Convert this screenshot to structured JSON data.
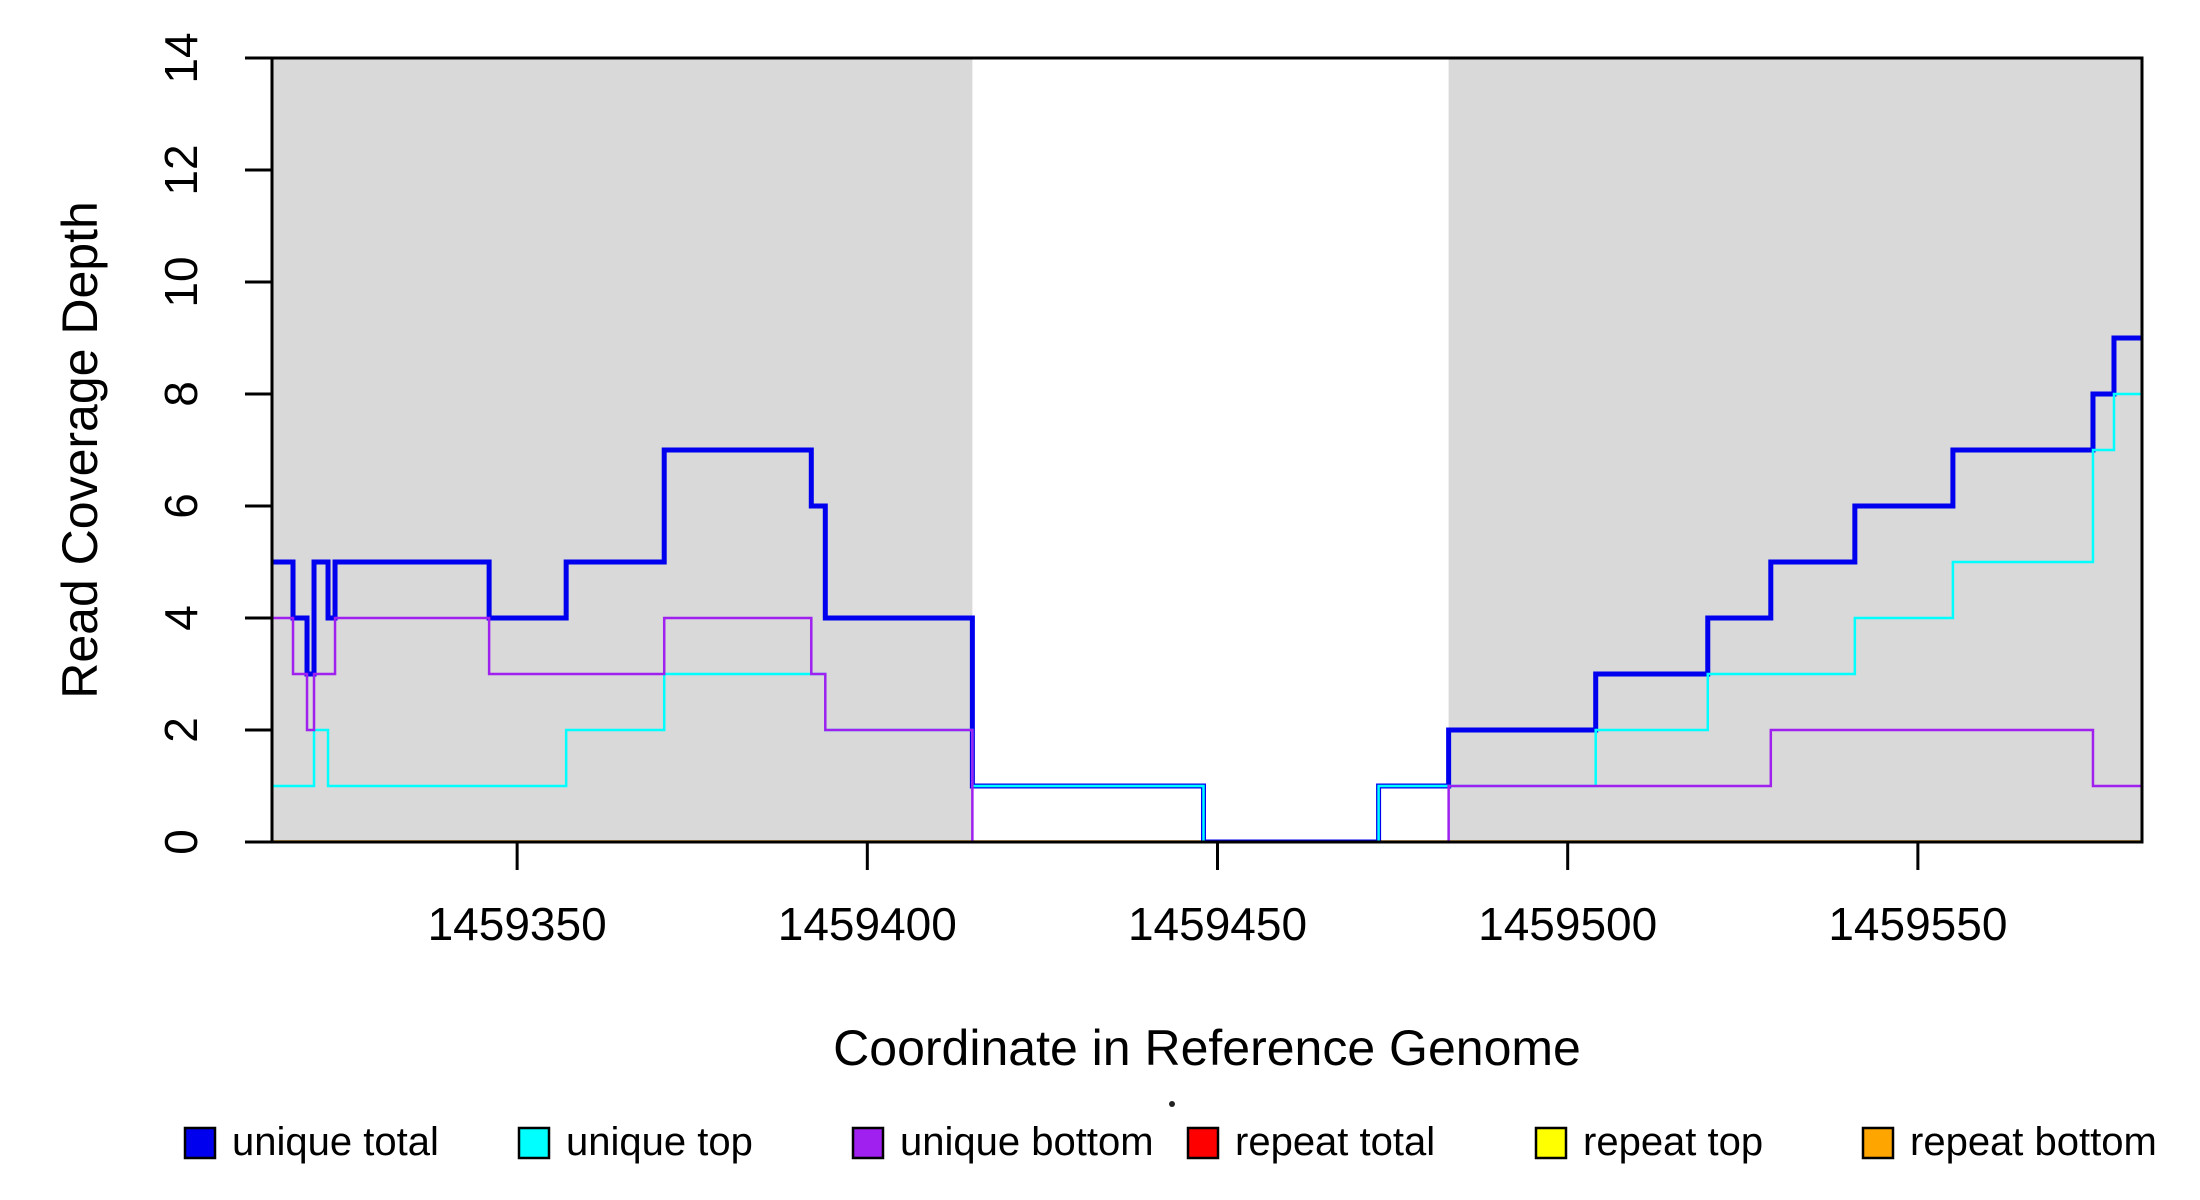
{
  "chart_data": {
    "type": "line",
    "subtype": "step-coverage-plot",
    "title": "",
    "xlabel": "Coordinate in Reference Genome",
    "ylabel": "Read Coverage Depth",
    "xlim": [
      1459315,
      1459582
    ],
    "ylim": [
      0,
      14
    ],
    "x_ticks": [
      1459350,
      1459400,
      1459450,
      1459500,
      1459550
    ],
    "y_ticks": [
      0,
      2,
      4,
      6,
      8,
      10,
      12,
      14
    ],
    "grid": false,
    "legend_position": "bottom",
    "background_color": "#ffffff",
    "shaded_region_color": "#d9d9d9",
    "shaded_regions": [
      {
        "from": 1459315,
        "to": 1459415
      },
      {
        "from": 1459483,
        "to": 1459582
      }
    ],
    "series": [
      {
        "name": "repeat total",
        "color": "#ff0000",
        "width": 2.5,
        "steps": [
          [
            1459315,
            0
          ]
        ]
      },
      {
        "name": "repeat top",
        "color": "#ffff00",
        "width": 2.5,
        "steps": [
          [
            1459315,
            0
          ]
        ]
      },
      {
        "name": "repeat bottom",
        "color": "#ffa500",
        "width": 3.5,
        "steps": [
          [
            1459315,
            0
          ]
        ]
      },
      {
        "name": "unique total",
        "color": "#0000ee",
        "width": 5,
        "steps": [
          [
            1459315,
            5
          ],
          [
            1459318,
            4
          ],
          [
            1459320,
            3
          ],
          [
            1459321,
            5
          ],
          [
            1459323,
            4
          ],
          [
            1459324,
            5
          ],
          [
            1459346,
            4
          ],
          [
            1459357,
            5
          ],
          [
            1459371,
            7
          ],
          [
            1459392,
            6
          ],
          [
            1459394,
            4
          ],
          [
            1459415,
            1
          ],
          [
            1459448,
            0
          ],
          [
            1459473,
            1
          ],
          [
            1459483,
            2
          ],
          [
            1459504,
            3
          ],
          [
            1459520,
            4
          ],
          [
            1459529,
            5
          ],
          [
            1459541,
            6
          ],
          [
            1459555,
            7
          ],
          [
            1459575,
            8
          ],
          [
            1459578,
            9
          ]
        ]
      },
      {
        "name": "unique top",
        "color": "#00ffff",
        "width": 2.5,
        "steps": [
          [
            1459315,
            1
          ],
          [
            1459321,
            2
          ],
          [
            1459323,
            1
          ],
          [
            1459357,
            2
          ],
          [
            1459371,
            3
          ],
          [
            1459394,
            2
          ],
          [
            1459415,
            1
          ],
          [
            1459448,
            0
          ],
          [
            1459473,
            1
          ],
          [
            1459504,
            2
          ],
          [
            1459520,
            3
          ],
          [
            1459541,
            4
          ],
          [
            1459555,
            5
          ],
          [
            1459575,
            7
          ],
          [
            1459578,
            8
          ]
        ]
      },
      {
        "name": "unique bottom",
        "color": "#a020f0",
        "width": 2.5,
        "steps": [
          [
            1459315,
            4
          ],
          [
            1459318,
            3
          ],
          [
            1459320,
            2
          ],
          [
            1459321,
            3
          ],
          [
            1459324,
            4
          ],
          [
            1459346,
            3
          ],
          [
            1459371,
            4
          ],
          [
            1459392,
            3
          ],
          [
            1459394,
            2
          ],
          [
            1459415,
            0
          ],
          [
            1459483,
            1
          ],
          [
            1459529,
            2
          ],
          [
            1459575,
            1
          ]
        ]
      }
    ],
    "legend": {
      "items": [
        {
          "label": "unique total",
          "color": "#0000ee"
        },
        {
          "label": "unique top",
          "color": "#00ffff"
        },
        {
          "label": "unique bottom",
          "color": "#a020f0"
        },
        {
          "label": "repeat total",
          "color": "#ff0000"
        },
        {
          "label": "repeat top",
          "color": "#ffff00"
        },
        {
          "label": "repeat bottom",
          "color": "#ffa500"
        }
      ]
    }
  }
}
